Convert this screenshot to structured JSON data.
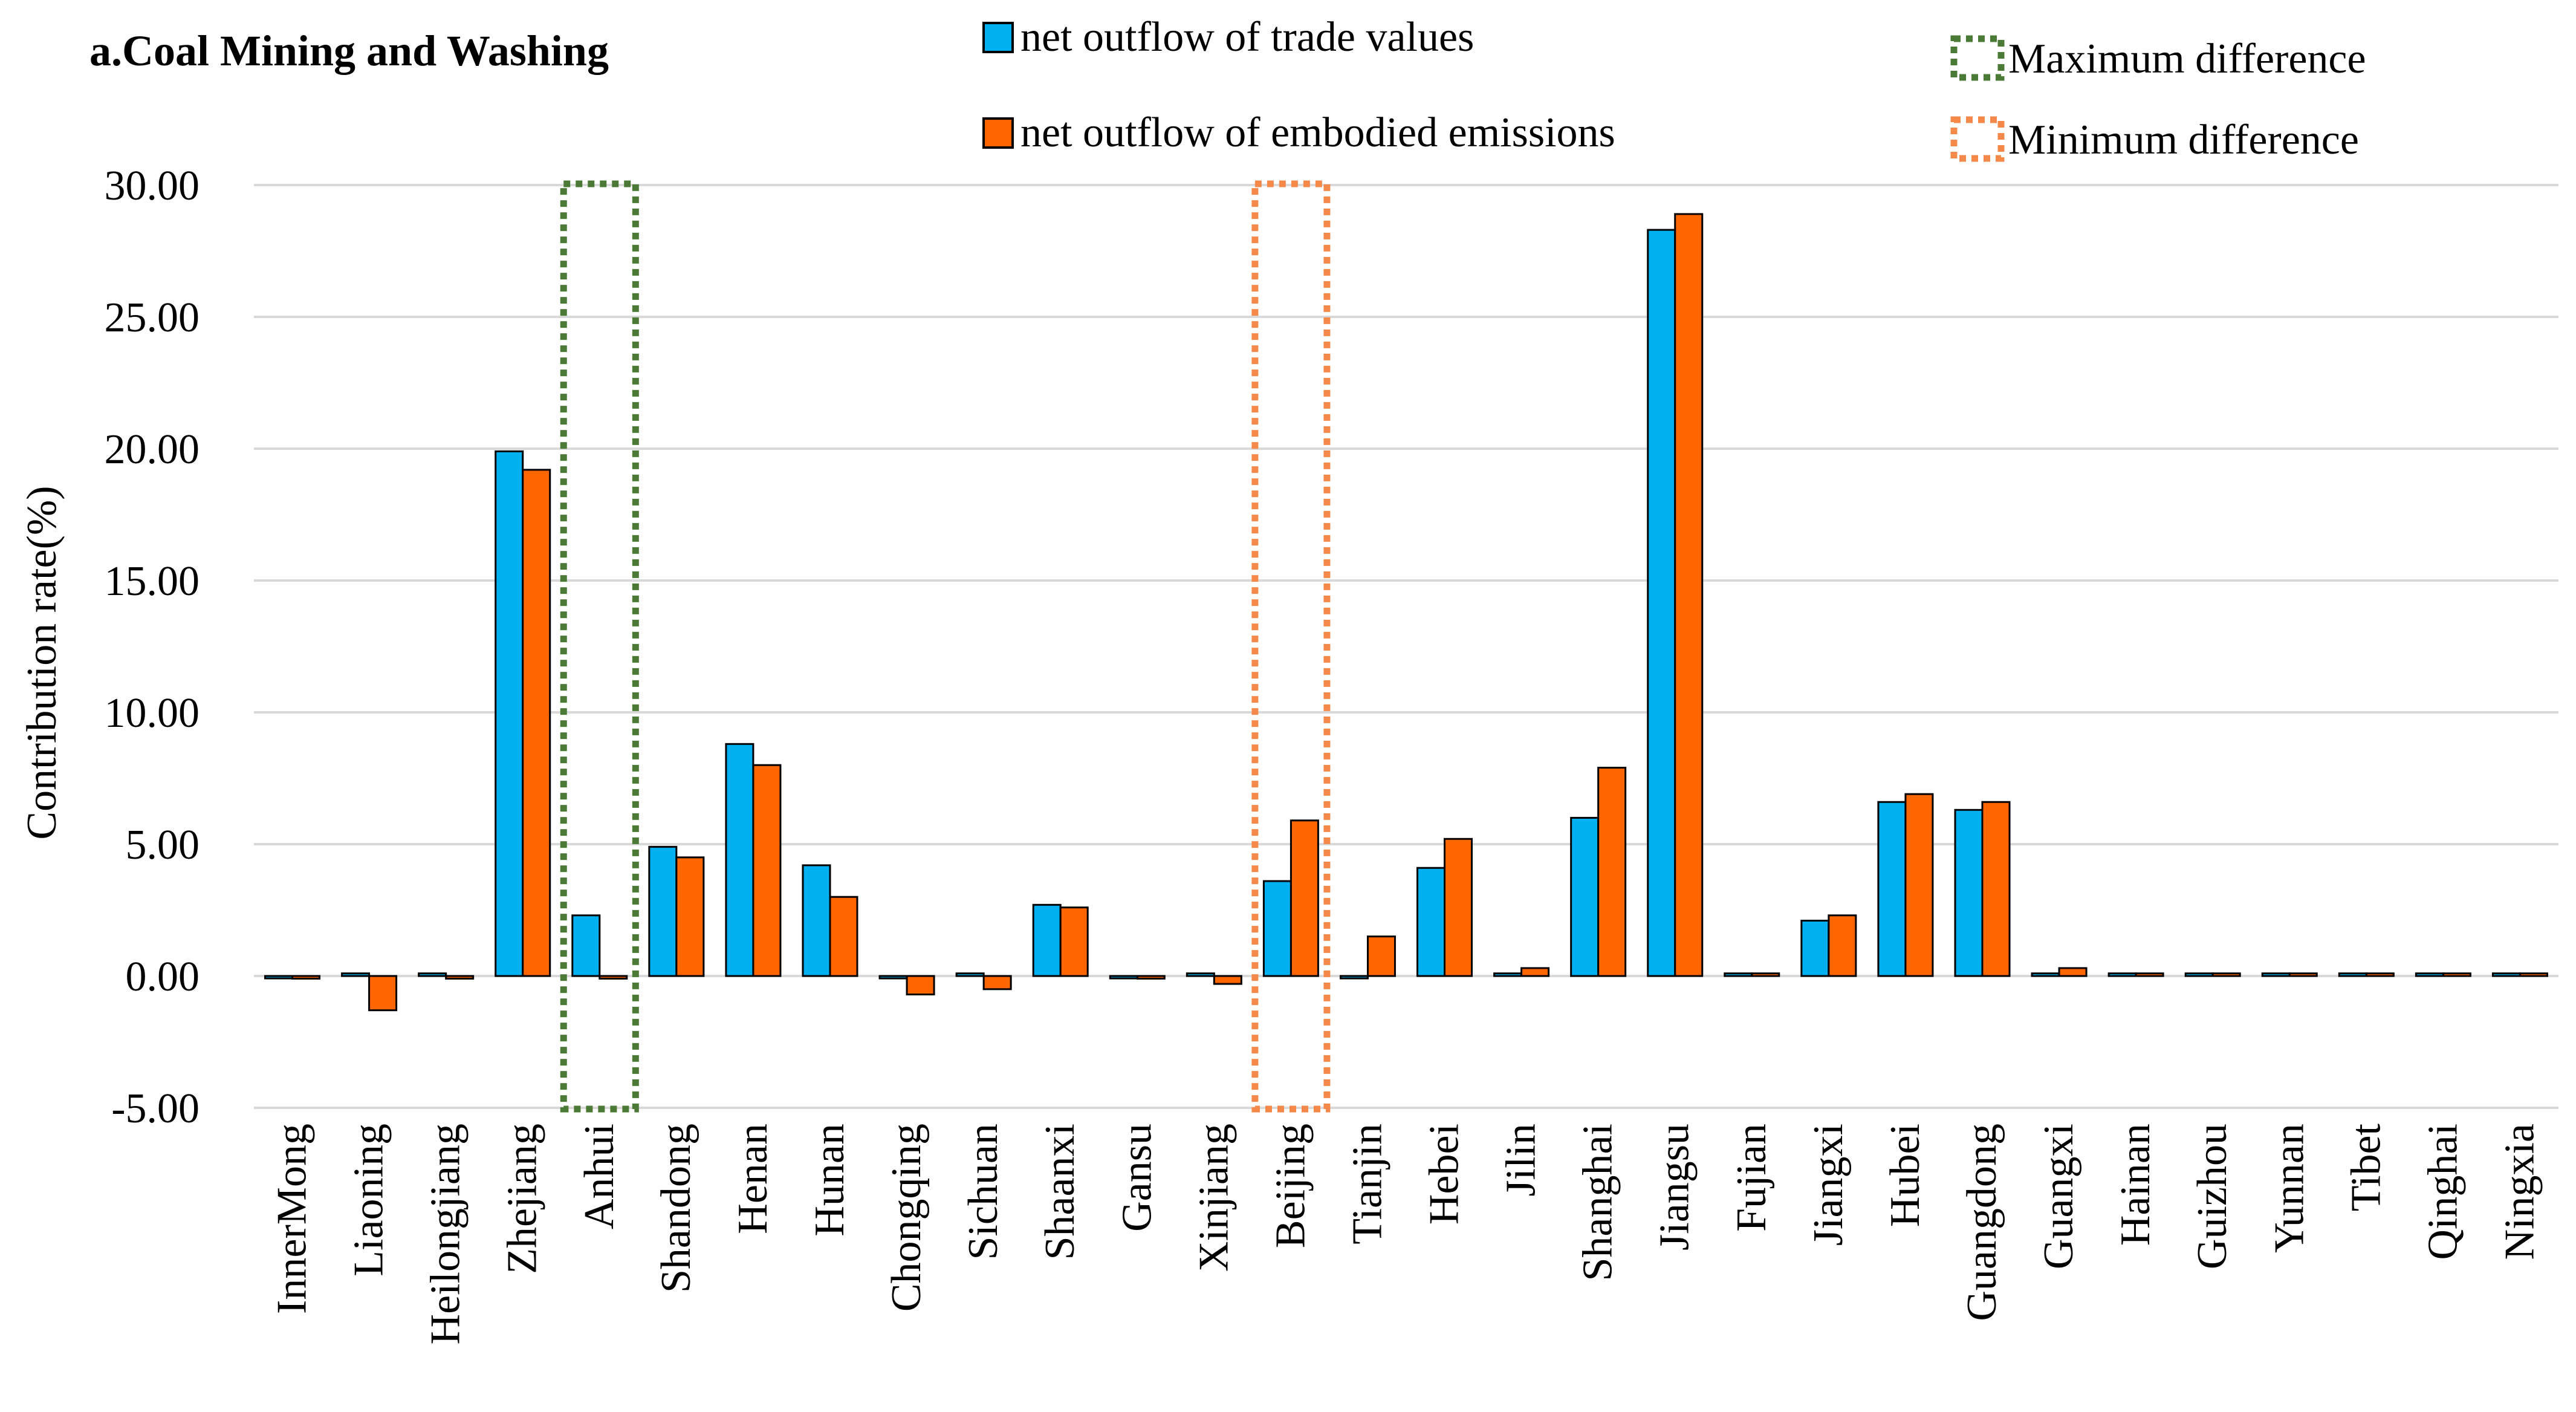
{
  "chart_data": {
    "type": "bar",
    "title": "a.Coal Mining and Washing",
    "xlabel": "",
    "ylabel": "Contribution rate(%)",
    "ylim": [
      -5,
      30
    ],
    "yticks": [
      30,
      25,
      20,
      15,
      10,
      5,
      0,
      -5
    ],
    "ytick_labels": [
      "30.00",
      "25.00",
      "20.00",
      "15.00",
      "10.00",
      "5.00",
      "0.00",
      "-5.00"
    ],
    "grid": true,
    "legend_position": "top",
    "categories": [
      "InnerMong",
      "Liaoning",
      "Heilongjiang",
      "Zhejiang",
      "Anhui",
      "Shandong",
      "Henan",
      "Hunan",
      "Chongqing",
      "Sichuan",
      "Shaanxi",
      "Gansu",
      "Xinjiang",
      "Beijing",
      "Tianjin",
      "Hebei",
      "Jilin",
      "Shanghai",
      "Jiangsu",
      "Fujian",
      "Jiangxi",
      "Hubei",
      "Guangdong",
      "Guangxi",
      "Hainan",
      "Guizhou",
      "Yunnan",
      "Tibet",
      "Qinghai",
      "Ningxia"
    ],
    "series": [
      {
        "name": "net outflow of trade values",
        "color": "#00B0F0",
        "values": [
          0.0,
          0.1,
          0.1,
          19.9,
          2.3,
          4.9,
          8.8,
          4.2,
          0.0,
          0.1,
          2.7,
          0.0,
          0.1,
          3.6,
          0.0,
          4.1,
          0.1,
          6.0,
          28.3,
          0.1,
          2.1,
          6.6,
          6.3,
          0.1,
          0.1,
          0.1,
          0.1,
          0.1,
          0.1,
          0.1
        ]
      },
      {
        "name": "net outflow of embodied emissions",
        "color": "#FF6600",
        "values": [
          -0.1,
          -1.3,
          -0.1,
          19.2,
          -0.1,
          4.5,
          8.0,
          3.0,
          -0.7,
          -0.5,
          2.6,
          -0.1,
          -0.3,
          5.9,
          1.5,
          5.2,
          0.3,
          7.9,
          28.9,
          0.1,
          2.3,
          6.9,
          6.6,
          0.3,
          0.1,
          0.1,
          0.1,
          0.1,
          0.1,
          0.1
        ]
      }
    ],
    "highlights": [
      {
        "name": "Maximum difference",
        "category": "Anhui",
        "color": "#4B7A37"
      },
      {
        "name": "Minimum difference",
        "category": "Beijing",
        "color": "#F4894A"
      }
    ]
  }
}
